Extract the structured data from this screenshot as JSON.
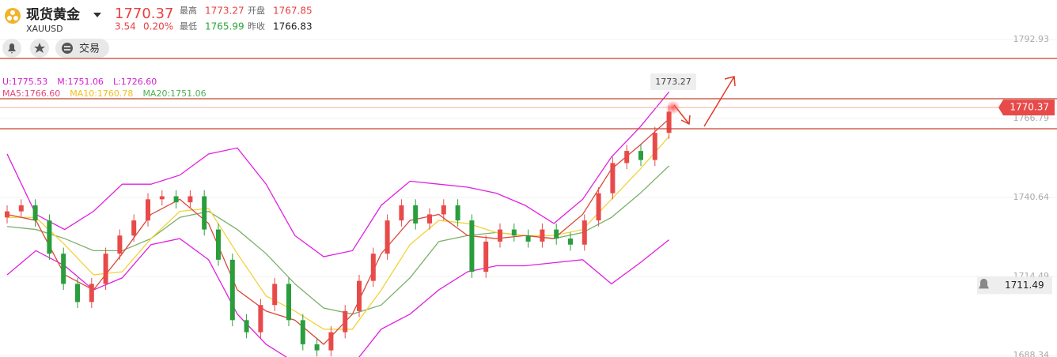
{
  "header": {
    "name": "现货黄金",
    "symbol": "XAUUSD",
    "price": 1770.37,
    "change": 3.54,
    "change_pct": "0.20%",
    "stats": [
      {
        "label": "最高",
        "value": 1773.27,
        "color": "#e84040"
      },
      {
        "label": "开盘",
        "value": 1767.85,
        "color": "#e84040"
      },
      {
        "label": "最低",
        "value": 1765.99,
        "color": "#2aa53c"
      },
      {
        "label": "昨收",
        "value": 1766.83,
        "color": "#222222"
      }
    ],
    "trade_button": "交易"
  },
  "chart_data": {
    "type": "candlestick",
    "up_color": "#e84a4a",
    "down_color": "#2a9d3c",
    "open": [
      1734,
      1736,
      1738,
      1733,
      1722,
      1712,
      1706,
      1712,
      1722,
      1728,
      1733,
      1740,
      1741,
      1739,
      1741,
      1730,
      1720,
      1700,
      1696,
      1705,
      1712,
      1700,
      1692,
      1690,
      1696,
      1703,
      1713,
      1722,
      1733,
      1738,
      1732,
      1735,
      1738,
      1733,
      1716,
      1726,
      1730,
      1728,
      1726,
      1730,
      1727,
      1725,
      1733,
      1742,
      1752,
      1756,
      1753,
      1762
    ],
    "high": [
      1738,
      1740,
      1740,
      1735,
      1724,
      1714,
      1714,
      1724,
      1730,
      1735,
      1742,
      1743,
      1743,
      1743,
      1743,
      1732,
      1722,
      1702,
      1707,
      1714,
      1714,
      1702,
      1694,
      1698,
      1705,
      1715,
      1724,
      1735,
      1740,
      1740,
      1737,
      1740,
      1740,
      1735,
      1728,
      1732,
      1732,
      1730,
      1732,
      1732,
      1729,
      1735,
      1744,
      1754,
      1758,
      1758,
      1764,
      1771
    ],
    "low": [
      1732,
      1734,
      1731,
      1720,
      1710,
      1704,
      1704,
      1710,
      1720,
      1726,
      1731,
      1738,
      1737,
      1737,
      1728,
      1718,
      1698,
      1694,
      1694,
      1703,
      1698,
      1690,
      1688,
      1688,
      1694,
      1701,
      1711,
      1720,
      1731,
      1730,
      1730,
      1733,
      1731,
      1714,
      1714,
      1724,
      1726,
      1724,
      1724,
      1725,
      1723,
      1723,
      1731,
      1740,
      1750,
      1751,
      1751,
      1760
    ],
    "close": [
      1736,
      1738,
      1733,
      1722,
      1712,
      1706,
      1712,
      1722,
      1728,
      1733,
      1740,
      1741,
      1739,
      1741,
      1730,
      1720,
      1700,
      1696,
      1705,
      1712,
      1700,
      1692,
      1690,
      1696,
      1703,
      1713,
      1722,
      1733,
      1738,
      1732,
      1735,
      1738,
      1733,
      1716,
      1726,
      1730,
      1728,
      1726,
      1730,
      1727,
      1725,
      1733,
      1742,
      1752,
      1756,
      1753,
      1762,
      1769
    ],
    "lines": [
      {
        "color": "#e020e0",
        "values": [
          1755,
          1735,
          1730,
          1736,
          1745,
          1745,
          1748,
          1755,
          1757,
          1745,
          1728,
          1721,
          1723,
          1738,
          1746,
          1745,
          1744,
          1742,
          1738,
          1732,
          1740,
          1754,
          1764,
          1775.53
        ]
      },
      {
        "color": "#e020e0",
        "values": [
          1715,
          1723,
          1718,
          1710,
          1714,
          1725,
          1727,
          1720,
          1702,
          1692,
          1686,
          1684,
          1685,
          1697,
          1702,
          1710,
          1716,
          1718,
          1718,
          1719,
          1720,
          1712,
          1719,
          1726.6
        ]
      },
      {
        "color": "#7bb069",
        "values": [
          1731,
          1730,
          1727,
          1723,
          1723,
          1727,
          1734,
          1736,
          1730,
          1722,
          1712,
          1704,
          1702,
          1705,
          1714,
          1726,
          1728,
          1729,
          1728,
          1727,
          1729,
          1734,
          1742,
          1751.06
        ]
      },
      {
        "color": "#f2d23a",
        "values": [
          1734,
          1734,
          1725,
          1715,
          1716,
          1727,
          1736,
          1737,
          1722,
          1708,
          1703,
          1697,
          1697,
          1710,
          1725,
          1733,
          1732,
          1729,
          1728,
          1728,
          1730,
          1740,
          1750,
          1760.78
        ]
      },
      {
        "color": "#d94a3a",
        "values": [
          1735,
          1733,
          1715,
          1710,
          1722,
          1735,
          1740,
          1732,
          1710,
          1703,
          1700,
          1692,
          1702,
          1722,
          1733,
          1735,
          1728,
          1727,
          1728,
          1727,
          1735,
          1750,
          1758,
          1766.6
        ]
      }
    ],
    "ylim": [
      1687.8,
      1794.2
    ],
    "yticks": [
      1792.93,
      1766.79,
      1740.64,
      1714.49,
      1688.34
    ],
    "indicators": [
      [
        {
          "text": "U:1775.53",
          "color": "#d21cd2"
        },
        {
          "text": "M:1751.06",
          "color": "#d21cd2"
        },
        {
          "text": "L:1726.60",
          "color": "#d21cd2"
        }
      ],
      [
        {
          "text": "MA5:1766.60",
          "color": "#e0487a"
        },
        {
          "text": "MA10:1760.78",
          "color": "#f0c020"
        },
        {
          "text": "MA20:1751.06",
          "color": "#4caf50"
        }
      ]
    ],
    "last_price": 1770.37,
    "alert_price": 1711.49,
    "high_marker": 1773.27
  }
}
